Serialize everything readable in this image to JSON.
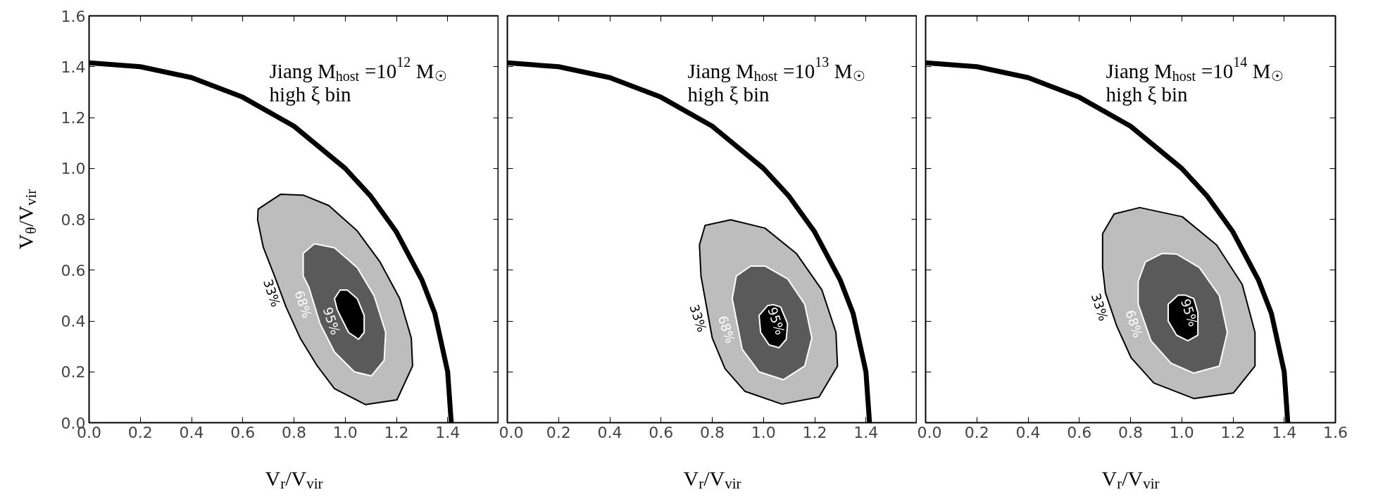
{
  "chart_data": [
    {
      "type": "line",
      "xlabel": "V$_{r}$/V$_{vir}$",
      "ylabel": "V$_{θ}$/V$_{vir}$",
      "xlim": [
        0,
        1.6
      ],
      "ylim": [
        0,
        1.6
      ],
      "xticks": [
        {
          "value": 0.0,
          "label": "0.0"
        },
        {
          "value": 0.2,
          "label": "0.2"
        },
        {
          "value": 0.4,
          "label": "0.4"
        },
        {
          "value": 0.6,
          "label": "0.6"
        },
        {
          "value": 0.8,
          "label": "0.8"
        },
        {
          "value": 1.0,
          "label": "1.0"
        },
        {
          "value": 1.2,
          "label": "1.2"
        },
        {
          "value": 1.4,
          "label": "1.4"
        },
        {
          "value": 1.6,
          "label": null
        }
      ],
      "yticks": [
        {
          "value": 0.0,
          "label": "0.0"
        },
        {
          "value": 0.2,
          "label": "0.2"
        },
        {
          "value": 0.4,
          "label": "0.4"
        },
        {
          "value": 0.6,
          "label": "0.6"
        },
        {
          "value": 0.8,
          "label": "0.8"
        },
        {
          "value": 1.0,
          "label": "1.0"
        },
        {
          "value": 1.2,
          "label": "1.2"
        },
        {
          "value": 1.4,
          "label": "1.4"
        },
        {
          "value": 1.6,
          "label": "1.6"
        }
      ],
      "grid": false,
      "annotations": [
        "Jiang M$_{host}$ =10$^{12}$ M$_{☉}$",
        "high ξ bin",
        {
          "text": "33%",
          "x": 0.758,
          "y": 0.51
        },
        {
          "text": "68%",
          "x": 0.88,
          "y": 0.466
        },
        {
          "text": "95%",
          "x": 0.991,
          "y": 0.4
        }
      ],
      "series": [
        {
          "type": "line",
          "color": "#000000",
          "x": [
            0,
            0.2,
            0.4,
            0.6,
            0.8,
            1.0,
            1.1,
            1.2,
            1.3,
            1.35,
            1.4,
            1.414
          ],
          "values": [
            1.415,
            1.4,
            1.357,
            1.28,
            1.166,
            1.0,
            0.89,
            0.75,
            0.56,
            0.43,
            0.2,
            0
          ]
        },
        {
          "type": "area",
          "color": "#000000",
          "x": [
            0.747,
            0.66,
            0.658,
            0.68,
            0.724,
            0.769,
            0.824,
            0.891,
            0.958,
            1.08,
            1.202,
            1.263,
            1.258,
            1.213,
            1.136,
            1.047,
            0.936,
            0.836
          ],
          "values": [
            0.898,
            0.84,
            0.798,
            0.69,
            0.577,
            0.455,
            0.333,
            0.223,
            0.134,
            0.071,
            0.09,
            0.223,
            0.333,
            0.488,
            0.632,
            0.754,
            0.854,
            0.895
          ]
        },
        {
          "type": "area",
          "color": "#ffffff",
          "x": [
            0.88,
            0.836,
            0.836,
            0.858,
            0.902,
            0.958,
            1.036,
            1.102,
            1.152,
            1.158,
            1.113,
            1.047,
            0.958
          ],
          "values": [
            0.704,
            0.666,
            0.577,
            0.533,
            0.389,
            0.278,
            0.2,
            0.184,
            0.245,
            0.355,
            0.499,
            0.61,
            0.688
          ]
        },
        {
          "type": "area",
          "color": "#ffffff",
          "x": [
            0.98,
            0.958,
            0.969,
            1.013,
            1.052,
            1.074,
            1.074,
            1.047,
            1.008
          ],
          "values": [
            0.522,
            0.488,
            0.444,
            0.355,
            0.328,
            0.355,
            0.422,
            0.488,
            0.522
          ]
        }
      ]
    },
    {
      "type": "line",
      "xlabel": "V$_{r}$/V$_{vir}$",
      "xlim": [
        0,
        1.6
      ],
      "ylim": [
        0,
        1.6
      ],
      "tick_labels": "x",
      "xticks": [
        {
          "value": 0.0,
          "label": "0.0"
        },
        {
          "value": 0.2,
          "label": "0.2"
        },
        {
          "value": 0.4,
          "label": "0.4"
        },
        {
          "value": 0.6,
          "label": "0.6"
        },
        {
          "value": 0.8,
          "label": "0.8"
        },
        {
          "value": 1.0,
          "label": "1.0"
        },
        {
          "value": 1.2,
          "label": "1.2"
        },
        {
          "value": 1.4,
          "label": "1.4"
        },
        {
          "value": 1.6,
          "label": null
        }
      ],
      "yticks": [
        {
          "value": 0.0,
          "label": null
        },
        {
          "value": 0.2,
          "label": null
        },
        {
          "value": 0.4,
          "label": null
        },
        {
          "value": 0.6,
          "label": null
        },
        {
          "value": 0.8,
          "label": null
        },
        {
          "value": 1.0,
          "label": null
        },
        {
          "value": 1.2,
          "label": null
        },
        {
          "value": 1.4,
          "label": null
        },
        {
          "value": 1.6,
          "label": null
        }
      ],
      "grid": false,
      "annotations": [
        "Jiang M$_{host}$ =10$^{13}$ M$_{☉}$",
        "high ξ bin",
        {
          "text": "33%",
          "x": 0.789,
          "y": 0.411
        },
        {
          "text": "68%",
          "x": 0.9,
          "y": 0.367
        },
        {
          "text": "95%",
          "x": 1.094,
          "y": 0.4
        }
      ],
      "series": [
        {
          "type": "line",
          "color": "#000000",
          "x": [
            0,
            0.2,
            0.4,
            0.6,
            0.8,
            1.0,
            1.1,
            1.2,
            1.3,
            1.35,
            1.4,
            1.414
          ],
          "values": [
            1.415,
            1.4,
            1.357,
            1.28,
            1.166,
            1.0,
            0.89,
            0.75,
            0.56,
            0.43,
            0.2,
            0
          ]
        },
        {
          "type": "area",
          "color": "#000000",
          "x": [
            0.872,
            0.772,
            0.75,
            0.756,
            0.772,
            0.8,
            0.85,
            0.928,
            1.072,
            1.217,
            1.289,
            1.283,
            1.228,
            1.128,
            1.006
          ],
          "values": [
            0.798,
            0.776,
            0.699,
            0.577,
            0.488,
            0.333,
            0.212,
            0.123,
            0.073,
            0.101,
            0.223,
            0.355,
            0.522,
            0.666,
            0.765
          ]
        },
        {
          "type": "area",
          "color": "#ffffff",
          "x": [
            0.95,
            0.894,
            0.878,
            0.917,
            0.983,
            1.078,
            1.161,
            1.189,
            1.161,
            1.094,
            1.006
          ],
          "values": [
            0.616,
            0.577,
            0.488,
            0.289,
            0.2,
            0.169,
            0.223,
            0.333,
            0.466,
            0.566,
            0.616
          ]
        },
        {
          "type": "area",
          "color": "#ffffff",
          "x": [
            1.017,
            0.983,
            0.989,
            1.022,
            1.061,
            1.089,
            1.094,
            1.067,
            1.039
          ],
          "values": [
            0.461,
            0.422,
            0.355,
            0.306,
            0.295,
            0.328,
            0.389,
            0.455,
            0.464
          ]
        }
      ]
    },
    {
      "type": "line",
      "xlabel": "V$_{r}$/V$_{vir}$",
      "xlim": [
        0,
        1.6
      ],
      "ylim": [
        0,
        1.6
      ],
      "tick_labels": "x",
      "xticks": [
        {
          "value": 0.0,
          "label": "0.0"
        },
        {
          "value": 0.2,
          "label": "0.2"
        },
        {
          "value": 0.4,
          "label": "0.4"
        },
        {
          "value": 0.6,
          "label": "0.6"
        },
        {
          "value": 0.8,
          "label": "0.8"
        },
        {
          "value": 1.0,
          "label": "1.0"
        },
        {
          "value": 1.2,
          "label": "1.2"
        },
        {
          "value": 1.4,
          "label": "1.4"
        },
        {
          "value": 1.6,
          "label": "1.6"
        }
      ],
      "yticks": [
        {
          "value": 0.0,
          "label": null
        },
        {
          "value": 0.2,
          "label": null
        },
        {
          "value": 0.4,
          "label": null
        },
        {
          "value": 0.6,
          "label": null
        },
        {
          "value": 0.8,
          "label": null
        },
        {
          "value": 1.0,
          "label": null
        },
        {
          "value": 1.2,
          "label": null
        },
        {
          "value": 1.4,
          "label": null
        },
        {
          "value": 1.6,
          "label": null
        }
      ],
      "grid": false,
      "annotations": [
        "Jiang M$_{host}$ =10$^{14}$ M$_{☉}$",
        "high ξ bin",
        {
          "text": "33%",
          "x": 0.724,
          "y": 0.455
        },
        {
          "text": "68%",
          "x": 0.858,
          "y": 0.389
        },
        {
          "text": "95%",
          "x": 1.074,
          "y": 0.433
        }
      ],
      "series": [
        {
          "type": "line",
          "color": "#000000",
          "x": [
            0,
            0.2,
            0.4,
            0.6,
            0.8,
            1.0,
            1.1,
            1.2,
            1.3,
            1.35,
            1.4,
            1.414
          ],
          "values": [
            1.415,
            1.4,
            1.357,
            1.28,
            1.166,
            1.0,
            0.89,
            0.75,
            0.56,
            0.43,
            0.2,
            0
          ]
        },
        {
          "type": "area",
          "color": "#000000",
          "x": [
            0.836,
            0.736,
            0.691,
            0.691,
            0.702,
            0.747,
            0.802,
            0.891,
            1.047,
            1.202,
            1.286,
            1.286,
            1.236,
            1.136,
            1.002
          ],
          "values": [
            0.846,
            0.821,
            0.743,
            0.61,
            0.511,
            0.378,
            0.256,
            0.156,
            0.095,
            0.117,
            0.223,
            0.355,
            0.544,
            0.699,
            0.81
          ]
        },
        {
          "type": "area",
          "color": "#ffffff",
          "x": [
            0.924,
            0.858,
            0.83,
            0.83,
            0.88,
            0.958,
            1.047,
            1.147,
            1.178,
            1.147,
            1.069,
            0.98
          ],
          "values": [
            0.666,
            0.632,
            0.555,
            0.466,
            0.322,
            0.234,
            0.195,
            0.223,
            0.355,
            0.499,
            0.61,
            0.663
          ]
        },
        {
          "type": "area",
          "color": "#ffffff",
          "x": [
            0.986,
            0.947,
            0.947,
            0.98,
            1.024,
            1.063,
            1.063,
            1.047,
            1.013
          ],
          "values": [
            0.502,
            0.466,
            0.4,
            0.344,
            0.322,
            0.344,
            0.433,
            0.488,
            0.502
          ]
        }
      ]
    }
  ]
}
